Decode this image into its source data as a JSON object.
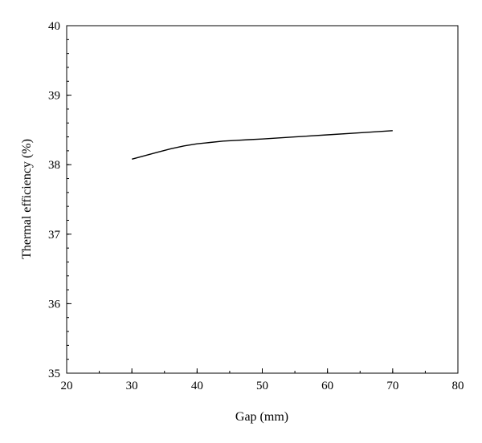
{
  "chart_data": {
    "type": "line",
    "title": "",
    "xlabel": "Gap (mm)",
    "ylabel": "Thermal efficiency (%)",
    "xlim": [
      20,
      80
    ],
    "ylim": [
      35,
      40
    ],
    "xticks": [
      20,
      30,
      40,
      50,
      60,
      70,
      80
    ],
    "yticks": [
      35,
      36,
      37,
      38,
      39,
      40
    ],
    "x_minor_step": 5,
    "y_minor_step": 0.2,
    "grid": false,
    "legend": "none",
    "line_color": "#000000",
    "series": [
      {
        "x": [
          30,
          32,
          34,
          36,
          38,
          40,
          42,
          44,
          46,
          48,
          50,
          55,
          60,
          65,
          70
        ],
        "y": [
          38.08,
          38.13,
          38.18,
          38.23,
          38.27,
          38.3,
          38.32,
          38.34,
          38.35,
          38.36,
          38.37,
          38.4,
          38.43,
          38.46,
          38.49
        ]
      }
    ]
  }
}
